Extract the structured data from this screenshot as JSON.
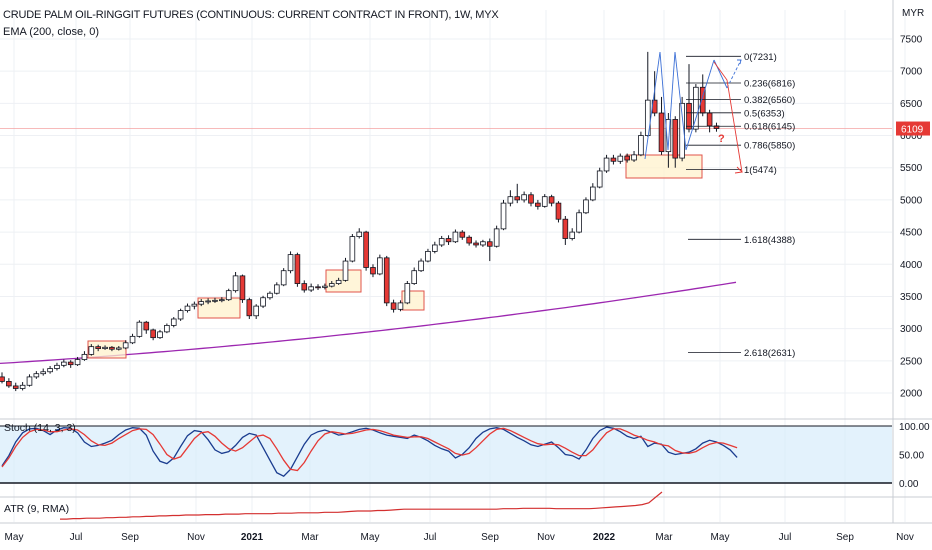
{
  "header": {
    "title": "CRUDE PALM OIL-RINGGIT FUTURES (CONTINUOUS: CURRENT CONTRACT IN FRONT), 1W, MYX",
    "ema_label": "EMA (200, close, 0)",
    "stoch_label": "Stoch (14, 3, 3)",
    "atr_label": "ATR (9, RMA)"
  },
  "chart_data": {
    "type": "candlestick",
    "currency": "MYR",
    "price_axis": {
      "ticks": [
        7500,
        7000,
        6500,
        6000,
        5500,
        5000,
        4500,
        4000,
        3500,
        3000,
        2500,
        2000
      ],
      "labels": [
        "7500",
        "7000",
        "6500",
        "6000",
        "5500",
        "5000",
        "4500",
        "4000",
        "3500",
        "3000",
        "2500",
        "2000"
      ],
      "last_price": 6109
    },
    "time_axis": {
      "labels": [
        "May",
        "Jul",
        "Sep",
        "Nov",
        "2021",
        "Mar",
        "May",
        "Jul",
        "Sep",
        "Nov",
        "2022",
        "Mar",
        "May",
        "Jul",
        "Sep",
        "Nov"
      ]
    },
    "candles": [
      [
        2250,
        2180,
        2320,
        2150
      ],
      [
        2180,
        2110,
        2230,
        2080
      ],
      [
        2110,
        2070,
        2160,
        2030
      ],
      [
        2070,
        2120,
        2170,
        2040
      ],
      [
        2120,
        2250,
        2290,
        2100
      ],
      [
        2250,
        2300,
        2340,
        2220
      ],
      [
        2300,
        2330,
        2380,
        2270
      ],
      [
        2330,
        2380,
        2420,
        2300
      ],
      [
        2380,
        2430,
        2470,
        2350
      ],
      [
        2430,
        2480,
        2520,
        2400
      ],
      [
        2480,
        2440,
        2510,
        2390
      ],
      [
        2440,
        2520,
        2560,
        2420
      ],
      [
        2520,
        2600,
        2650,
        2500
      ],
      [
        2600,
        2720,
        2760,
        2580
      ],
      [
        2720,
        2690,
        2750,
        2650
      ],
      [
        2690,
        2710,
        2740,
        2670
      ],
      [
        2710,
        2680,
        2730,
        2650
      ],
      [
        2680,
        2700,
        2730,
        2660
      ],
      [
        2700,
        2780,
        2820,
        2680
      ],
      [
        2780,
        2880,
        2920,
        2760
      ],
      [
        2880,
        3100,
        3130,
        2860
      ],
      [
        3100,
        2980,
        3120,
        2920
      ],
      [
        2980,
        2860,
        3000,
        2820
      ],
      [
        2860,
        2950,
        2980,
        2840
      ],
      [
        2950,
        3050,
        3080,
        2930
      ],
      [
        3050,
        3150,
        3180,
        3020
      ],
      [
        3150,
        3280,
        3310,
        3120
      ],
      [
        3280,
        3350,
        3390,
        3250
      ],
      [
        3350,
        3380,
        3420,
        3300
      ],
      [
        3380,
        3420,
        3460,
        3350
      ],
      [
        3420,
        3430,
        3470,
        3380
      ],
      [
        3430,
        3440,
        3480,
        3400
      ],
      [
        3440,
        3450,
        3490,
        3410
      ],
      [
        3450,
        3590,
        3620,
        3430
      ],
      [
        3590,
        3820,
        3880,
        3560
      ],
      [
        3820,
        3450,
        3840,
        3400
      ],
      [
        3450,
        3200,
        3480,
        3150
      ],
      [
        3200,
        3350,
        3380,
        3150
      ],
      [
        3350,
        3480,
        3510,
        3320
      ],
      [
        3480,
        3550,
        3580,
        3450
      ],
      [
        3550,
        3680,
        3720,
        3530
      ],
      [
        3680,
        3900,
        3940,
        3660
      ],
      [
        3900,
        4150,
        4200,
        3860
      ],
      [
        4150,
        3700,
        4180,
        3650
      ],
      [
        3700,
        3600,
        3750,
        3560
      ],
      [
        3600,
        3650,
        3700,
        3570
      ],
      [
        3650,
        3640,
        3690,
        3600
      ],
      [
        3640,
        3660,
        3700,
        3610
      ],
      [
        3660,
        3700,
        3740,
        3640
      ],
      [
        3700,
        3750,
        3790,
        3680
      ],
      [
        3750,
        4050,
        4100,
        3730
      ],
      [
        4050,
        4430,
        4470,
        4030
      ],
      [
        4430,
        4500,
        4560,
        4400
      ],
      [
        4500,
        3950,
        4520,
        3900
      ],
      [
        3950,
        3850,
        4000,
        3800
      ],
      [
        3850,
        4100,
        4150,
        3830
      ],
      [
        4100,
        3400,
        4130,
        3350
      ],
      [
        3400,
        3300,
        3450,
        3250
      ],
      [
        3300,
        3400,
        3440,
        3270
      ],
      [
        3400,
        3700,
        3740,
        3380
      ],
      [
        3700,
        3900,
        3950,
        3680
      ],
      [
        3900,
        4050,
        4090,
        3880
      ],
      [
        4050,
        4200,
        4240,
        4030
      ],
      [
        4200,
        4300,
        4350,
        4170
      ],
      [
        4300,
        4400,
        4440,
        4270
      ],
      [
        4400,
        4350,
        4450,
        4300
      ],
      [
        4350,
        4500,
        4540,
        4330
      ],
      [
        4500,
        4420,
        4530,
        4380
      ],
      [
        4420,
        4330,
        4450,
        4290
      ],
      [
        4330,
        4300,
        4370,
        4260
      ],
      [
        4300,
        4350,
        4380,
        4270
      ],
      [
        4350,
        4280,
        4400,
        4050
      ],
      [
        4280,
        4550,
        4600,
        4260
      ],
      [
        4550,
        4950,
        5000,
        4530
      ],
      [
        4950,
        5050,
        5150,
        4900
      ],
      [
        5050,
        5000,
        5250,
        4950
      ],
      [
        5000,
        5080,
        5130,
        4960
      ],
      [
        5080,
        4950,
        5120,
        4900
      ],
      [
        4950,
        4900,
        5000,
        4850
      ],
      [
        4900,
        5050,
        5090,
        4880
      ],
      [
        5050,
        4950,
        5080,
        4900
      ],
      [
        4950,
        4700,
        4980,
        4650
      ],
      [
        4700,
        4400,
        4750,
        4300
      ],
      [
        4400,
        4500,
        4560,
        4370
      ],
      [
        4500,
        4800,
        4850,
        4480
      ],
      [
        4800,
        5000,
        5040,
        4780
      ],
      [
        5000,
        5200,
        5260,
        4980
      ],
      [
        5200,
        5450,
        5500,
        5180
      ],
      [
        5450,
        5650,
        5700,
        5420
      ],
      [
        5650,
        5600,
        5700,
        5550
      ],
      [
        5600,
        5680,
        5720,
        5560
      ],
      [
        5680,
        5620,
        5720,
        5580
      ],
      [
        5620,
        5700,
        5760,
        5590
      ],
      [
        5700,
        6000,
        6060,
        5680
      ],
      [
        6000,
        6550,
        7300,
        5980
      ],
      [
        6550,
        6350,
        7000,
        6300
      ],
      [
        6350,
        5750,
        6600,
        5700
      ],
      [
        5750,
        6250,
        6350,
        5500
      ],
      [
        6250,
        5650,
        6300,
        5500
      ],
      [
        5650,
        6500,
        6600,
        5600
      ],
      [
        6500,
        6100,
        7110,
        6050
      ],
      [
        6100,
        6750,
        6800,
        6050
      ],
      [
        6750,
        6350,
        6950,
        6300
      ],
      [
        6350,
        6150,
        6400,
        6050
      ],
      [
        6150,
        6109,
        6200,
        6060
      ]
    ],
    "ema200": {
      "start": 2460,
      "end": 3720
    },
    "fibonacci": [
      {
        "level": "0",
        "value": 7231,
        "label": "0(7231)"
      },
      {
        "level": "0.236",
        "value": 6816,
        "label": "0.236(6816)"
      },
      {
        "level": "0.382",
        "value": 6560,
        "label": "0.382(6560)"
      },
      {
        "level": "0.5",
        "value": 6353,
        "label": "0.5(6353)"
      },
      {
        "level": "0.618",
        "value": 6145,
        "label": "0.618(6145)"
      },
      {
        "level": "0.786",
        "value": 5850,
        "label": "0.786(5850)"
      },
      {
        "level": "1",
        "value": 5474,
        "label": "1(5474)"
      },
      {
        "level": "1.618",
        "value": 4388,
        "label": "1.618(4388)"
      },
      {
        "level": "2.618",
        "value": 2631,
        "label": "2.618(2631)"
      }
    ],
    "annotation_question": "?",
    "stoch": {
      "ticks": [
        100,
        50,
        0
      ],
      "labels": [
        "100.00",
        "50.00",
        "0.00"
      ],
      "k": [
        30,
        48,
        72,
        88,
        95,
        96,
        92,
        85,
        93,
        97,
        96,
        88,
        72,
        64,
        66,
        70,
        75,
        85,
        93,
        97,
        96,
        84,
        56,
        38,
        34,
        44,
        64,
        83,
        92,
        90,
        76,
        58,
        52,
        55,
        66,
        80,
        87,
        84,
        62,
        40,
        18,
        12,
        24,
        46,
        68,
        84,
        90,
        93,
        89,
        84,
        86,
        90,
        94,
        96,
        93,
        88,
        84,
        82,
        80,
        78,
        84,
        80,
        74,
        66,
        60,
        56,
        44,
        50,
        62,
        78,
        89,
        95,
        97,
        94,
        87,
        80,
        74,
        67,
        64,
        68,
        72,
        62,
        50,
        48,
        42,
        58,
        78,
        92,
        98,
        96,
        90,
        82,
        78,
        82,
        64,
        70,
        68,
        54,
        50,
        52,
        54,
        60,
        70,
        75,
        72,
        66,
        58,
        45
      ],
      "d": [
        28,
        44,
        64,
        80,
        90,
        94,
        93,
        90,
        90,
        93,
        95,
        93,
        85,
        74,
        67,
        66,
        70,
        78,
        85,
        92,
        95,
        94,
        85,
        68,
        50,
        42,
        46,
        62,
        78,
        88,
        90,
        82,
        70,
        60,
        56,
        62,
        72,
        82,
        84,
        78,
        60,
        40,
        24,
        22,
        36,
        56,
        74,
        86,
        90,
        88,
        86,
        87,
        90,
        93,
        94,
        92,
        88,
        84,
        82,
        80,
        81,
        81,
        78,
        72,
        66,
        60,
        52,
        49,
        52,
        62,
        74,
        86,
        94,
        96,
        92,
        86,
        80,
        74,
        69,
        67,
        68,
        67,
        61,
        54,
        48,
        48,
        58,
        74,
        88,
        95,
        95,
        90,
        84,
        80,
        75,
        72,
        67,
        65,
        57,
        53,
        52,
        55,
        62,
        68,
        71,
        70,
        66,
        62
      ]
    },
    "atr": {
      "points": [
        40,
        40,
        41,
        41,
        42,
        42,
        42,
        43,
        43,
        44,
        44,
        45,
        45,
        46,
        46,
        47,
        47,
        48,
        48,
        49,
        49,
        49,
        50,
        50,
        50,
        51,
        51,
        51,
        52,
        52,
        52,
        52,
        52,
        53,
        53,
        53,
        54,
        54,
        54,
        54,
        55,
        55,
        55,
        56,
        57,
        58,
        58,
        58,
        59,
        59,
        60,
        61,
        62,
        62,
        62,
        62,
        62,
        62,
        62,
        62,
        62,
        62,
        62,
        62,
        62,
        62,
        62,
        63,
        63,
        63,
        64,
        64,
        64,
        64,
        64,
        63,
        63,
        63,
        63,
        63,
        63,
        64,
        65,
        66,
        67,
        68,
        69,
        70,
        72,
        76,
        88,
        100
      ]
    }
  }
}
